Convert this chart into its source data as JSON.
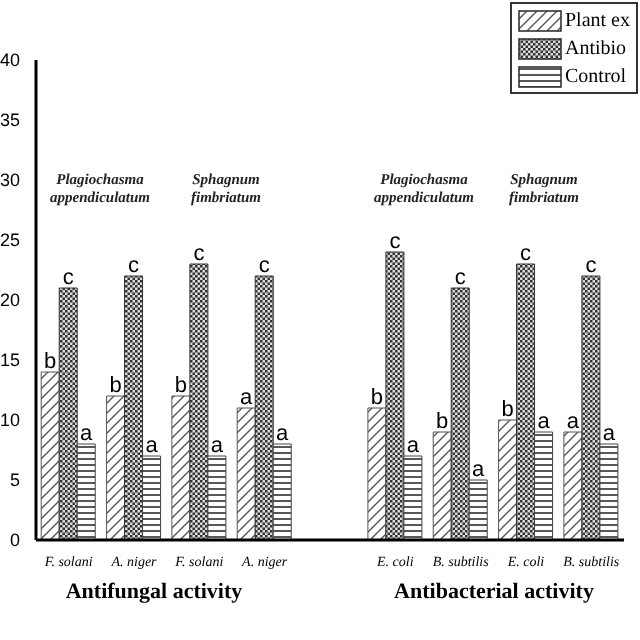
{
  "chart_data": {
    "type": "bar",
    "categories": [
      "F. solani",
      "A. niger",
      "F. solani",
      "A. niger",
      null,
      "E. coli",
      "B. subtilis",
      "E. coli",
      "B. subtilis"
    ],
    "series": [
      {
        "name": "Plant ex",
        "color": "#555555",
        "values": [
          14,
          12,
          12,
          11,
          null,
          11,
          9,
          10,
          9
        ],
        "value_labels": [
          "b",
          "b",
          "b",
          "a",
          null,
          "b",
          "b",
          "b",
          "a"
        ]
      },
      {
        "name": "Antibio",
        "color": "#333333",
        "values": [
          21,
          22,
          23,
          22,
          null,
          24,
          21,
          23,
          22
        ],
        "value_labels": [
          "c",
          "c",
          "c",
          "c",
          null,
          "c",
          "c",
          "c",
          "c"
        ]
      },
      {
        "name": "Control",
        "color": "#444444",
        "values": [
          8,
          7,
          7,
          8,
          null,
          7,
          5,
          9,
          8
        ],
        "value_labels": [
          "a",
          "a",
          "a",
          "a",
          null,
          "a",
          "a",
          "a",
          "a"
        ]
      }
    ],
    "ylim": [
      0,
      40
    ],
    "yticks": [
      0,
      5,
      10,
      15,
      20,
      25,
      30,
      35,
      40
    ],
    "annotations": [
      "Plagiochasma appendiculatum",
      "Sphagnum fimbriatum",
      "Plagiochasma appendiculatum",
      "Sphagnum fimbriatum",
      "Antifungal activity",
      "Antibacterial activity"
    ],
    "legend": "top right",
    "grid": false
  }
}
